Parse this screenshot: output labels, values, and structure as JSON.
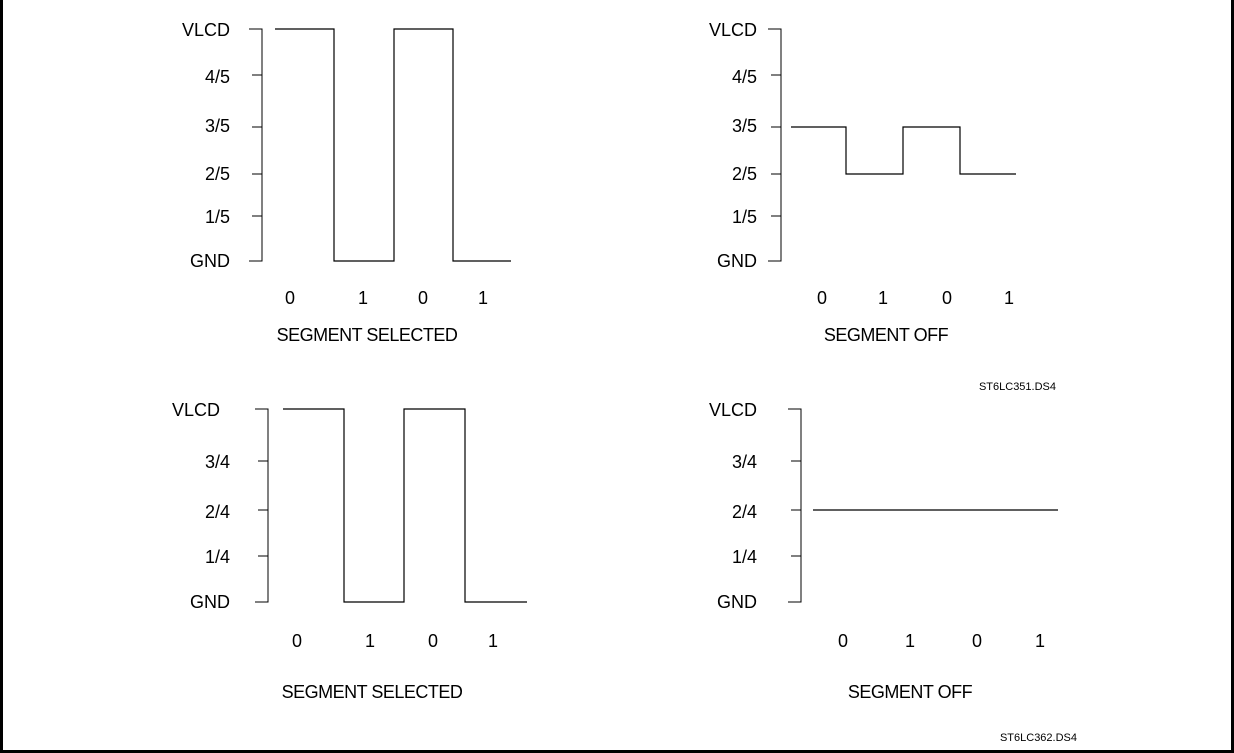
{
  "panels": [
    {
      "id": "top-left",
      "levels": [
        "VLCD",
        "4/5",
        "3/5",
        "2/5",
        "1/5",
        "GND"
      ],
      "bits": [
        "0",
        "1",
        "0",
        "1"
      ],
      "caption": "SEGMENT SELECTED",
      "waveform": [
        "VLCD",
        "GND",
        "VLCD",
        "GND"
      ]
    },
    {
      "id": "top-right",
      "levels": [
        "VLCD",
        "4/5",
        "3/5",
        "2/5",
        "1/5",
        "GND"
      ],
      "bits": [
        "0",
        "1",
        "0",
        "1"
      ],
      "caption": "SEGMENT OFF",
      "waveform": [
        "3/5",
        "2/5",
        "3/5",
        "2/5"
      ]
    },
    {
      "id": "bottom-left",
      "levels": [
        "VLCD",
        "3/4",
        "2/4",
        "1/4",
        "GND"
      ],
      "bits": [
        "0",
        "1",
        "0",
        "1"
      ],
      "caption": "SEGMENT SELECTED",
      "waveform": [
        "VLCD",
        "GND",
        "VLCD",
        "GND"
      ]
    },
    {
      "id": "bottom-right",
      "levels": [
        "VLCD",
        "3/4",
        "2/4",
        "1/4",
        "GND"
      ],
      "bits": [
        "0",
        "1",
        "0",
        "1"
      ],
      "caption": "SEGMENT OFF",
      "waveform": [
        "2/4",
        "2/4",
        "2/4",
        "2/4"
      ]
    }
  ],
  "refs": {
    "top": "ST6LC351.DS4",
    "bottom": "ST6LC362.DS4"
  }
}
